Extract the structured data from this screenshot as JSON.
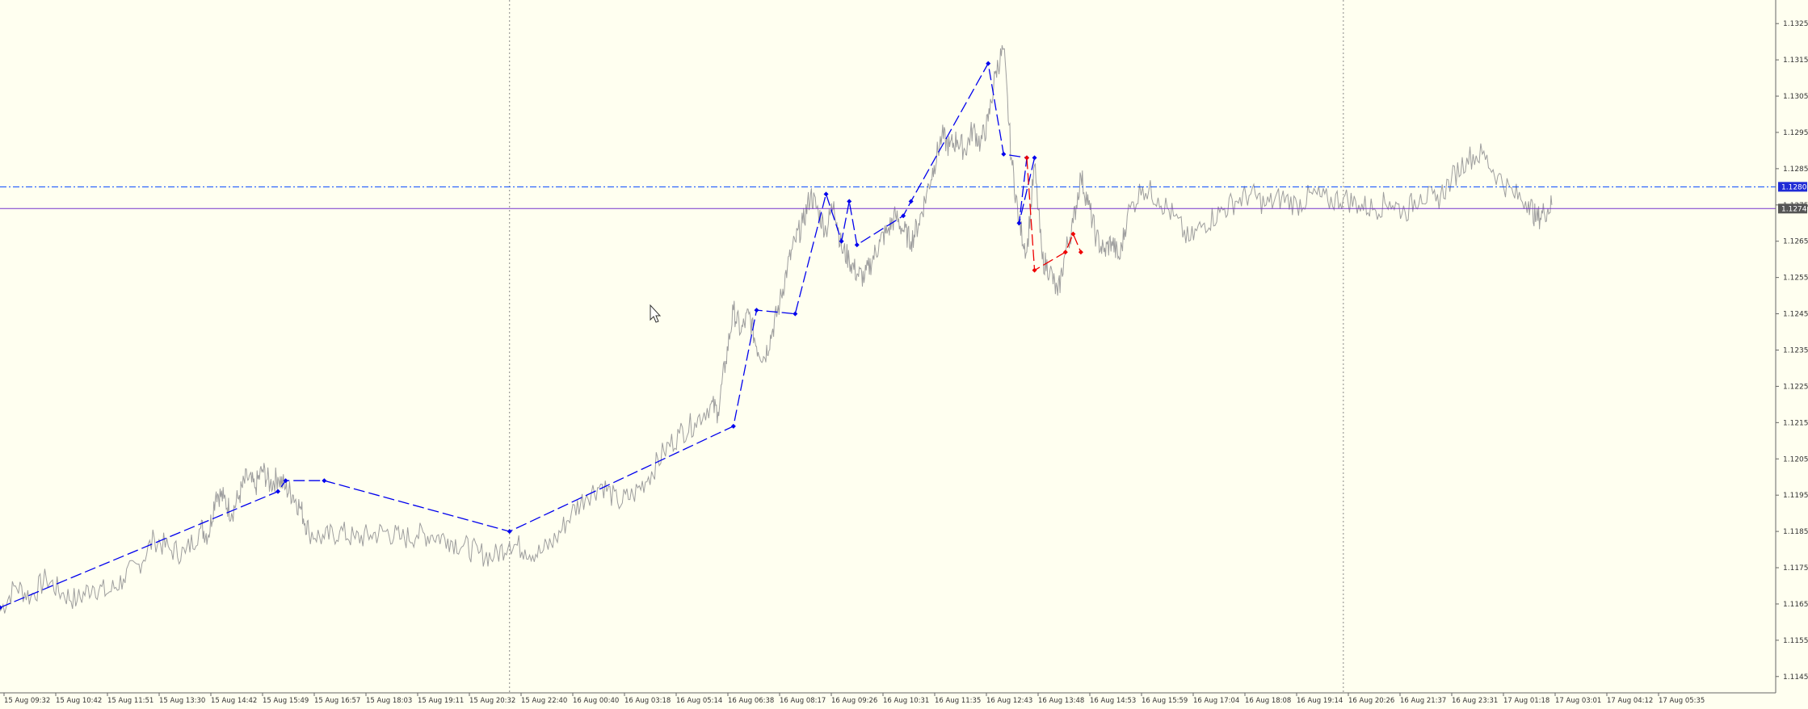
{
  "chart_data": {
    "type": "line",
    "title": "",
    "xlabel": "",
    "ylabel": "",
    "ylim": [
      1.11405,
      1.13315
    ],
    "y_ticks": [
      "1.1145",
      "1.1155",
      "1.1165",
      "1.1175",
      "1.1185",
      "1.1195",
      "1.1205",
      "1.1215",
      "1.1225",
      "1.1235",
      "1.1245",
      "1.1255",
      "1.1265",
      "1.1275",
      "1.1285",
      "1.1295",
      "1.1305",
      "1.1315",
      "1.1325"
    ],
    "x_ticks": [
      "15 Aug 09:32",
      "15 Aug 10:42",
      "15 Aug 11:51",
      "15 Aug 13:30",
      "15 Aug 14:42",
      "15 Aug 15:49",
      "15 Aug 16:57",
      "15 Aug 18:03",
      "15 Aug 19:11",
      "15 Aug 20:32",
      "15 Aug 22:40",
      "16 Aug 00:40",
      "16 Aug 03:18",
      "16 Aug 05:14",
      "16 Aug 06:38",
      "16 Aug 08:17",
      "16 Aug 09:26",
      "16 Aug 10:31",
      "16 Aug 11:35",
      "16 Aug 12:43",
      "16 Aug 13:48",
      "16 Aug 14:53",
      "16 Aug 15:59",
      "16 Aug 17:04",
      "16 Aug 18:08",
      "16 Aug 19:14",
      "16 Aug 20:26",
      "16 Aug 21:37",
      "16 Aug 23:31",
      "17 Aug 01:18",
      "17 Aug 03:01",
      "17 Aug 04:12",
      "17 Aug 05:35"
    ],
    "price_path": [
      [
        0,
        1.1163
      ],
      [
        2,
        1.117
      ],
      [
        4,
        1.1167
      ],
      [
        6,
        1.1172
      ],
      [
        8,
        1.1168
      ],
      [
        10,
        1.1166
      ],
      [
        12,
        1.117
      ],
      [
        14,
        1.1168
      ],
      [
        16,
        1.1172
      ],
      [
        18,
        1.1176
      ],
      [
        20,
        1.1183
      ],
      [
        22,
        1.118
      ],
      [
        24,
        1.1179
      ],
      [
        26,
        1.1186
      ],
      [
        27,
        1.1184
      ],
      [
        28,
        1.1196
      ],
      [
        29,
        1.1194
      ],
      [
        30,
        1.119
      ],
      [
        31,
        1.1195
      ],
      [
        32,
        1.12
      ],
      [
        33,
        1.1197
      ],
      [
        34,
        1.1202
      ],
      [
        35,
        1.1198
      ],
      [
        36,
        1.12
      ],
      [
        37,
        1.1197
      ],
      [
        38,
        1.1195
      ],
      [
        39,
        1.1191
      ],
      [
        40,
        1.1185
      ],
      [
        42,
        1.1183
      ],
      [
        44,
        1.1185
      ],
      [
        46,
        1.1183
      ],
      [
        48,
        1.1184
      ],
      [
        50,
        1.1185
      ],
      [
        52,
        1.1183
      ],
      [
        54,
        1.1184
      ],
      [
        56,
        1.1184
      ],
      [
        58,
        1.1183
      ],
      [
        60,
        1.1181
      ],
      [
        62,
        1.1179
      ],
      [
        64,
        1.1178
      ],
      [
        66,
        1.1182
      ],
      [
        68,
        1.118
      ],
      [
        70,
        1.1179
      ],
      [
        72,
        1.1183
      ],
      [
        74,
        1.119
      ],
      [
        76,
        1.1195
      ],
      [
        78,
        1.1198
      ],
      [
        80,
        1.1193
      ],
      [
        82,
        1.1195
      ],
      [
        84,
        1.12
      ],
      [
        86,
        1.1207
      ],
      [
        88,
        1.1212
      ],
      [
        90,
        1.1215
      ],
      [
        92,
        1.122
      ],
      [
        93,
        1.1218
      ],
      [
        94,
        1.1232
      ],
      [
        95,
        1.1246
      ],
      [
        96,
        1.124
      ],
      [
        97,
        1.1245
      ],
      [
        98,
        1.1236
      ],
      [
        99,
        1.1233
      ],
      [
        100,
        1.124
      ],
      [
        101,
        1.1248
      ],
      [
        102,
        1.1258
      ],
      [
        103,
        1.1265
      ],
      [
        104,
        1.127
      ],
      [
        105,
        1.1278
      ],
      [
        106,
        1.1273
      ],
      [
        107,
        1.1268
      ],
      [
        108,
        1.1276
      ],
      [
        109,
        1.1263
      ],
      [
        110,
        1.126
      ],
      [
        111,
        1.1256
      ],
      [
        112,
        1.1255
      ],
      [
        113,
        1.126
      ],
      [
        114,
        1.1265
      ],
      [
        115,
        1.1268
      ],
      [
        116,
        1.1272
      ],
      [
        117,
        1.1268
      ],
      [
        118,
        1.1265
      ],
      [
        119,
        1.127
      ],
      [
        120,
        1.1278
      ],
      [
        121,
        1.1286
      ],
      [
        122,
        1.1294
      ],
      [
        123,
        1.1291
      ],
      [
        124,
        1.1293
      ],
      [
        125,
        1.129
      ],
      [
        126,
        1.1296
      ],
      [
        127,
        1.1292
      ],
      [
        128,
        1.1298
      ],
      [
        129,
        1.1312
      ],
      [
        130,
        1.1318
      ],
      [
        131,
        1.1288
      ],
      [
        132,
        1.127
      ],
      [
        133,
        1.1262
      ],
      [
        134,
        1.1286
      ],
      [
        135,
        1.126
      ],
      [
        136,
        1.1257
      ],
      [
        137,
        1.125
      ],
      [
        138,
        1.1262
      ],
      [
        139,
        1.127
      ],
      [
        140,
        1.1283
      ],
      [
        141,
        1.1275
      ],
      [
        142,
        1.1266
      ],
      [
        143,
        1.1262
      ],
      [
        144,
        1.1265
      ],
      [
        145,
        1.126
      ],
      [
        146,
        1.1272
      ],
      [
        148,
        1.128
      ],
      [
        150,
        1.1277
      ],
      [
        152,
        1.1272
      ],
      [
        154,
        1.1265
      ],
      [
        156,
        1.127
      ],
      [
        158,
        1.1273
      ],
      [
        160,
        1.1276
      ],
      [
        162,
        1.1278
      ],
      [
        164,
        1.1275
      ],
      [
        166,
        1.1277
      ],
      [
        168,
        1.1275
      ],
      [
        170,
        1.1278
      ],
      [
        172,
        1.1276
      ],
      [
        174,
        1.1277
      ],
      [
        176,
        1.1275
      ],
      [
        178,
        1.1274
      ],
      [
        180,
        1.1276
      ],
      [
        182,
        1.1273
      ],
      [
        184,
        1.1278
      ],
      [
        186,
        1.1276
      ],
      [
        188,
        1.1282
      ],
      [
        190,
        1.1288
      ],
      [
        192,
        1.1289
      ],
      [
        194,
        1.1283
      ],
      [
        196,
        1.1278
      ],
      [
        198,
        1.1276
      ],
      [
        199,
        1.1271
      ],
      [
        200,
        1.1273
      ],
      [
        201,
        1.1275
      ]
    ],
    "pattern_points_blue": [
      [
        0,
        1.1164
      ],
      [
        36,
        1.1196
      ],
      [
        37,
        1.1199
      ],
      [
        42,
        1.1199
      ],
      [
        66,
        1.1185
      ],
      [
        95,
        1.1214
      ],
      [
        98,
        1.1246
      ],
      [
        103,
        1.1245
      ],
      [
        107,
        1.1278
      ],
      [
        109,
        1.1265
      ],
      [
        110,
        1.1276
      ],
      [
        111,
        1.1264
      ],
      [
        117,
        1.1272
      ],
      [
        118,
        1.1276
      ],
      [
        128,
        1.1314
      ],
      [
        130,
        1.1289
      ],
      [
        133,
        1.1288
      ],
      [
        132,
        1.127
      ],
      [
        134,
        1.1288
      ]
    ],
    "pattern_points_red": [
      [
        133,
        1.1288
      ],
      [
        134,
        1.1257
      ],
      [
        138,
        1.1262
      ],
      [
        139,
        1.1267
      ],
      [
        140,
        1.1262
      ]
    ],
    "hline_dashdot": {
      "value": 1.128,
      "label": "1.1280",
      "color": "#0044ff"
    },
    "hline_solid": {
      "value": 1.1274,
      "label": "1.1274",
      "color": "#7733cc"
    },
    "vlines_dotted_index": [
      66,
      174
    ],
    "colors": {
      "background": "#fffff0",
      "price": "#9e9e9e",
      "blue": "#0000ee",
      "red": "#ee0000",
      "axis": "#666666"
    }
  }
}
